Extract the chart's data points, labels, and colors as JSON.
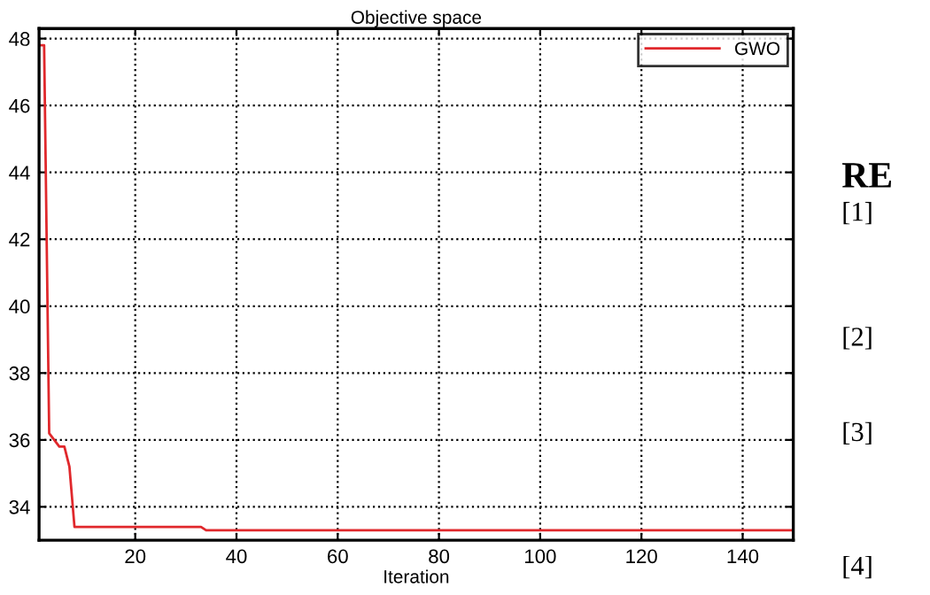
{
  "chart_data": {
    "type": "line",
    "title": "Objective space",
    "xlabel": "Iteration",
    "series": [
      {
        "name": "GWO",
        "color": "#e0282c",
        "x": [
          1,
          2,
          3,
          4,
          5,
          6,
          7,
          8,
          33,
          34,
          150
        ],
        "values": [
          47.8,
          47.8,
          36.2,
          36.0,
          35.8,
          35.8,
          35.2,
          33.4,
          33.4,
          33.3,
          33.3
        ]
      }
    ],
    "xlim": [
      1,
      150
    ],
    "xticks": [
      20,
      40,
      60,
      80,
      100,
      120,
      140
    ],
    "ylim": [
      33,
      48.3
    ],
    "yticks": [
      34,
      36,
      38,
      40,
      42,
      44,
      46,
      48
    ],
    "grid": true,
    "legend": "top right",
    "line_style": "solid",
    "marker": "none",
    "annotations": [
      "RE",
      "[1]",
      "[2]",
      "[3]",
      "[4]"
    ]
  }
}
